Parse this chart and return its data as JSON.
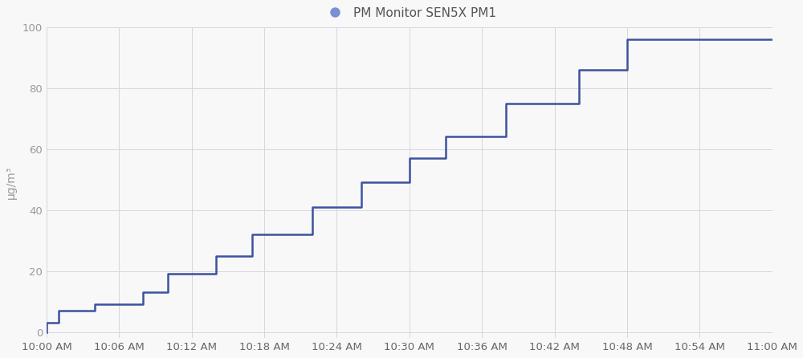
{
  "title": "PM Monitor SEN5X PM1",
  "ylabel": "μg/m³",
  "line_color": "#3d52a0",
  "legend_marker_color": "#7b8fd4",
  "background_color": "#f8f8f8",
  "plot_bg_color": "#f8f8f8",
  "grid_color": "#d5d5e0",
  "ylim": [
    -2,
    100
  ],
  "yticks": [
    0,
    20,
    40,
    60,
    80,
    100
  ],
  "x_tick_labels": [
    "10:00 AM",
    "10:06 AM",
    "10:12 AM",
    "10:18 AM",
    "10:24 AM",
    "10:30 AM",
    "10:36 AM",
    "10:42 AM",
    "10:48 AM",
    "10:54 AM",
    "11:00 AM"
  ],
  "timestamps_minutes": [
    0,
    1,
    4,
    8,
    10,
    14,
    17,
    22,
    26,
    30,
    33,
    38,
    44,
    48,
    54,
    60
  ],
  "values": [
    0,
    3,
    7,
    9,
    13,
    19,
    25,
    32,
    41,
    49,
    57,
    64,
    75,
    86,
    96,
    96
  ],
  "line_width": 1.8,
  "title_fontsize": 13,
  "tick_fontsize": 9.5,
  "ylabel_fontsize": 10,
  "legend_fontsize": 11
}
